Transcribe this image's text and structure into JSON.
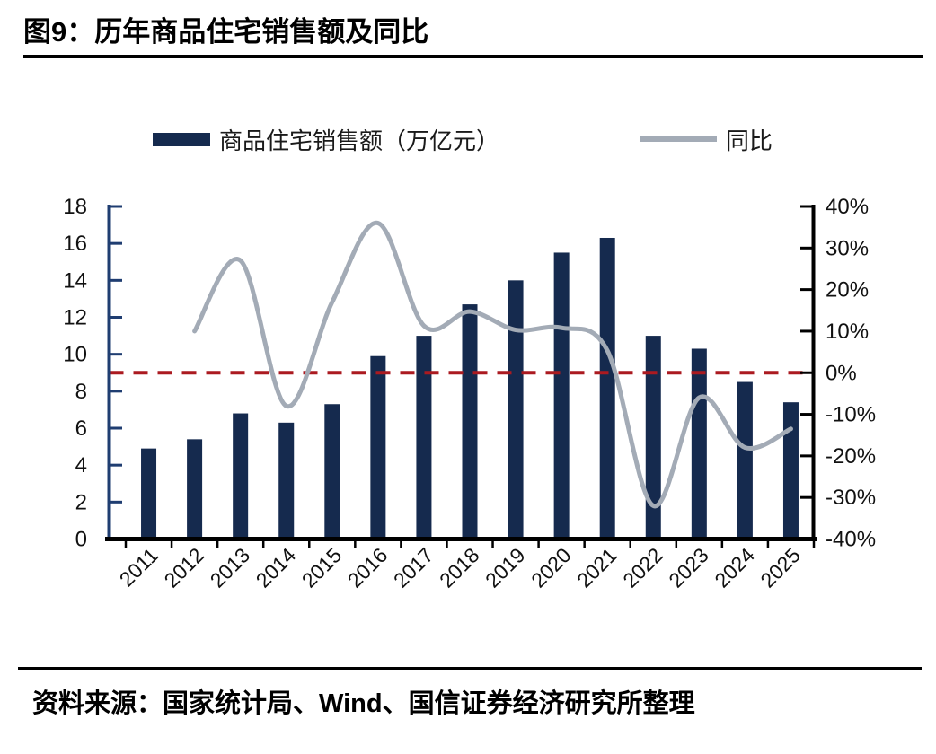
{
  "header": {
    "title": "图9：历年商品住宅销售额及同比"
  },
  "legend": {
    "sales_label": "商品住宅销售额（万亿元）",
    "yoy_label": "同比"
  },
  "footer": {
    "source": "资料来源：国家统计局、Wind、国信证券经济研究所整理"
  },
  "colors": {
    "bar": "#152a4e",
    "line": "#a3abb6",
    "zero_line": "#ab1a20",
    "left_axis": "#1f3d71",
    "axis_black": "#000000",
    "text": "#111111"
  },
  "chart_data": {
    "type": "bar",
    "subtype": "combo-bar-line-dual-axis",
    "title": "历年商品住宅销售额及同比",
    "categories": [
      "2011",
      "2012",
      "2013",
      "2014",
      "2015",
      "2016",
      "2017",
      "2018",
      "2019",
      "2020",
      "2021",
      "2022",
      "2023",
      "2024",
      "2025"
    ],
    "series": [
      {
        "name": "商品住宅销售额（万亿元）",
        "type": "bar",
        "axis": "left",
        "values": [
          4.9,
          5.4,
          6.8,
          6.3,
          7.3,
          9.9,
          11.0,
          12.7,
          14.0,
          15.5,
          16.3,
          11.0,
          10.3,
          8.5,
          7.4
        ]
      },
      {
        "name": "同比",
        "type": "line",
        "axis": "right",
        "unit": "%",
        "values": [
          null,
          10,
          27,
          -8,
          17,
          36,
          11.3,
          14.7,
          10.3,
          10.8,
          5.3,
          -32,
          -6,
          -18,
          -13.5
        ]
      }
    ],
    "left_axis": {
      "min": 0,
      "max": 18,
      "step": 2,
      "ticks": [
        "0",
        "2",
        "4",
        "6",
        "8",
        "10",
        "12",
        "14",
        "16",
        "18"
      ]
    },
    "right_axis": {
      "min": -40,
      "max": 40,
      "step": 10,
      "ticks": [
        "-40%",
        "-30%",
        "-20%",
        "-10%",
        "0%",
        "10%",
        "20%",
        "30%",
        "40%"
      ]
    },
    "zero_line": {
      "axis": "right",
      "value": 0,
      "style": "dashed"
    },
    "legend_position": "top",
    "grid": false,
    "smooth_line": true
  }
}
